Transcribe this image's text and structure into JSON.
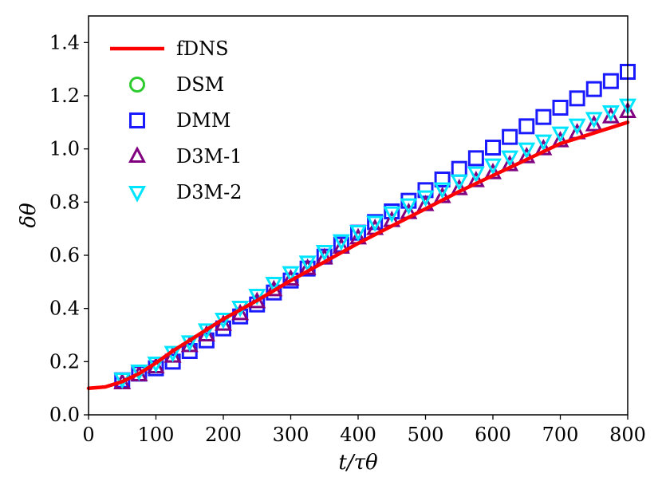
{
  "chart_data": {
    "type": "line",
    "title": "",
    "xlabel": "t/τθ",
    "ylabel": "δθ",
    "xlim": [
      0,
      800
    ],
    "ylim": [
      0.0,
      1.5
    ],
    "x_ticks": [
      "0",
      "100",
      "200",
      "300",
      "400",
      "500",
      "600",
      "700",
      "800"
    ],
    "y_ticks": [
      "0.0",
      "0.2",
      "0.4",
      "0.6",
      "0.8",
      "1.0",
      "1.2",
      "1.4"
    ],
    "grid": false,
    "legend_position": "top-left",
    "series": [
      {
        "name": "fDNS",
        "style": "line",
        "color": "#ff0000",
        "x": [
          0,
          25,
          50,
          75,
          100,
          125,
          150,
          175,
          200,
          250,
          300,
          350,
          400,
          450,
          500,
          550,
          600,
          650,
          700,
          750,
          800
        ],
        "y": [
          0.1,
          0.105,
          0.125,
          0.155,
          0.195,
          0.24,
          0.28,
          0.32,
          0.36,
          0.43,
          0.505,
          0.575,
          0.645,
          0.71,
          0.775,
          0.84,
          0.9,
          0.96,
          1.02,
          1.06,
          1.1
        ]
      },
      {
        "name": "DSM",
        "style": "marker",
        "marker": "circle",
        "color": "#2ecc2e",
        "x": [],
        "y": []
      },
      {
        "name": "DMM",
        "style": "marker",
        "marker": "square",
        "color": "#1a1aff",
        "x": [
          50,
          75,
          100,
          125,
          150,
          175,
          200,
          225,
          250,
          275,
          300,
          325,
          350,
          375,
          400,
          425,
          450,
          475,
          500,
          525,
          550,
          575,
          600,
          625,
          650,
          675,
          700,
          725,
          750,
          775,
          800
        ],
        "y": [
          0.13,
          0.155,
          0.175,
          0.2,
          0.24,
          0.28,
          0.325,
          0.37,
          0.415,
          0.46,
          0.505,
          0.55,
          0.595,
          0.64,
          0.685,
          0.725,
          0.765,
          0.805,
          0.845,
          0.885,
          0.925,
          0.965,
          1.005,
          1.045,
          1.085,
          1.12,
          1.155,
          1.19,
          1.225,
          1.255,
          1.29
        ]
      },
      {
        "name": "D3M-1",
        "style": "marker",
        "marker": "triangle-up",
        "color": "#800080",
        "x": [
          50,
          75,
          100,
          125,
          150,
          175,
          200,
          225,
          250,
          275,
          300,
          325,
          350,
          375,
          400,
          425,
          450,
          475,
          500,
          525,
          550,
          575,
          600,
          625,
          650,
          675,
          700,
          725,
          750,
          775,
          800
        ],
        "y": [
          0.12,
          0.15,
          0.18,
          0.22,
          0.26,
          0.3,
          0.34,
          0.38,
          0.425,
          0.47,
          0.51,
          0.55,
          0.59,
          0.63,
          0.665,
          0.7,
          0.73,
          0.76,
          0.79,
          0.82,
          0.85,
          0.88,
          0.91,
          0.94,
          0.97,
          1.0,
          1.03,
          1.06,
          1.09,
          1.12,
          1.14
        ]
      },
      {
        "name": "D3M-2",
        "style": "marker",
        "marker": "triangle-down",
        "color": "#00e5ff",
        "x": [
          50,
          75,
          100,
          125,
          150,
          175,
          200,
          225,
          250,
          275,
          300,
          325,
          350,
          375,
          400,
          425,
          450,
          475,
          500,
          525,
          550,
          575,
          600,
          625,
          650,
          675,
          700,
          725,
          750,
          775,
          800
        ],
        "y": [
          0.135,
          0.165,
          0.195,
          0.235,
          0.275,
          0.32,
          0.36,
          0.405,
          0.45,
          0.495,
          0.535,
          0.575,
          0.615,
          0.655,
          0.69,
          0.725,
          0.76,
          0.79,
          0.82,
          0.85,
          0.88,
          0.91,
          0.94,
          0.97,
          1.0,
          1.03,
          1.06,
          1.09,
          1.115,
          1.14,
          1.165
        ]
      }
    ]
  }
}
